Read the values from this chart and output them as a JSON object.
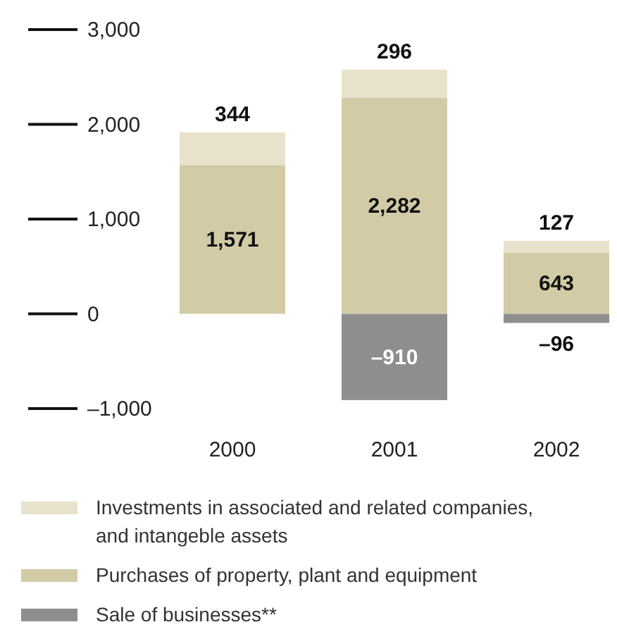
{
  "chart_data": {
    "type": "bar",
    "stacked": true,
    "categories": [
      "2000",
      "2001",
      "2002"
    ],
    "series": [
      {
        "name": "Purchases of property, plant and equipment",
        "color": "#d3cba6",
        "values": [
          1571,
          2282,
          643
        ],
        "value_labels": [
          "1,571",
          "2,282",
          "643"
        ]
      },
      {
        "name": "Investments in associated and related companies, and intangeble assets",
        "color": "#e8e2cc",
        "values": [
          344,
          296,
          127
        ],
        "value_labels": [
          "344",
          "296",
          "127"
        ]
      },
      {
        "name": "Sale of businesses**",
        "color": "#8e8e8e",
        "values": [
          null,
          -910,
          -96
        ],
        "value_labels": [
          null,
          "–910",
          "–96"
        ]
      }
    ],
    "ylim": [
      -1000,
      3000
    ],
    "yticks": [
      {
        "value": 3000,
        "label": "3,000"
      },
      {
        "value": 2000,
        "label": "2,000"
      },
      {
        "value": 1000,
        "label": "1,000"
      },
      0,
      {
        "value": -1000,
        "label": "–1,000"
      }
    ],
    "legend": "bottom"
  }
}
